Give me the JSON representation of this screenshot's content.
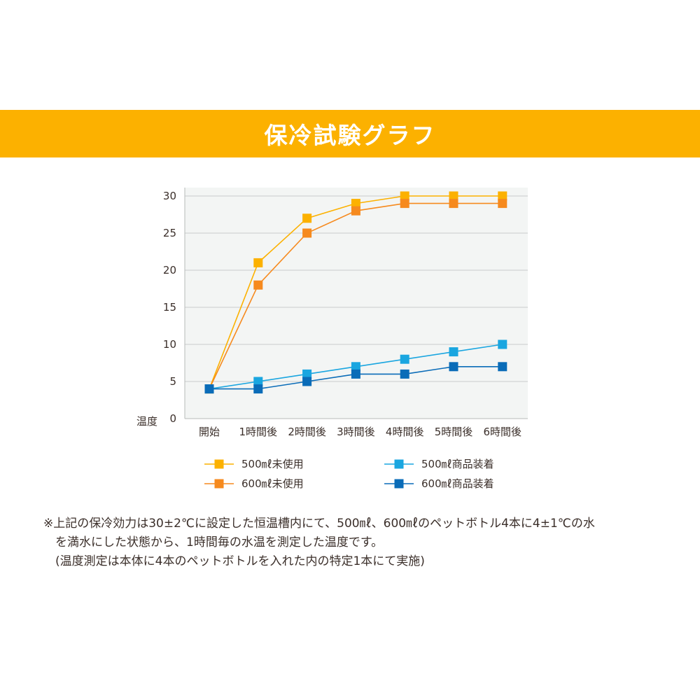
{
  "header": {
    "title": "保冷試験グラフ"
  },
  "chart_data": {
    "type": "line",
    "title": "",
    "xlabel": "",
    "ylabel": "温度",
    "ylim": [
      0,
      30
    ],
    "yticks": [
      "0",
      "5",
      "10",
      "15",
      "20",
      "25",
      "30"
    ],
    "grid": true,
    "legend_position": "bottom",
    "categories": [
      "開始",
      "1時間後",
      "2時間後",
      "3時間後",
      "4時間後",
      "5時間後",
      "6時間後"
    ],
    "series": [
      {
        "name": "500㎖未使用",
        "color": "#fcb100",
        "values": [
          4,
          21,
          27,
          29,
          30,
          30,
          30
        ]
      },
      {
        "name": "600㎖未使用",
        "color": "#f68a1e",
        "values": [
          4,
          18,
          25,
          28,
          29,
          29,
          29
        ]
      },
      {
        "name": "500㎖商品装着",
        "color": "#1aa6e0",
        "values": [
          4,
          5,
          6,
          7,
          8,
          9,
          10
        ]
      },
      {
        "name": "600㎖商品装着",
        "color": "#0a6cb8",
        "values": [
          4,
          4,
          5,
          6,
          6,
          7,
          7
        ]
      }
    ]
  },
  "note": {
    "line1": "※上記の保冷効力は30±2℃に設定した恒温槽内にて、500㎖、600㎖のペットボトル4本に4±1℃の水",
    "line2": "を満水にした状態から、1時間毎の水温を測定した温度です。",
    "line3": "(温度測定は本体に4本のペットボトルを入れた内の特定1本にて実施)"
  }
}
